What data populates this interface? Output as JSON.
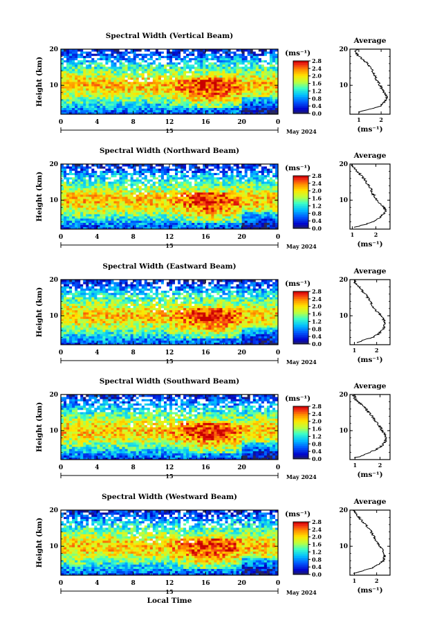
{
  "figure": {
    "date_label": "May 2024",
    "day_label": "15",
    "xlabel": "Local Time",
    "colorbar_unit": "(ms⁻¹)",
    "average_title": "Average"
  },
  "chart_data": [
    {
      "type": "heatmap",
      "title": "Spectral Width (Vertical Beam)",
      "xlabel": "",
      "ylabel": "Height (km)",
      "xlim": [
        0,
        24
      ],
      "ylim": [
        2,
        20
      ],
      "xticks": [
        "0",
        "4",
        "8",
        "12",
        "16",
        "20",
        "0"
      ],
      "yticks": [
        "10",
        "20"
      ],
      "colorbar": {
        "min": 0.0,
        "max": 2.8,
        "ticks": [
          "0.0",
          "0.4",
          "0.8",
          "1.2",
          "1.6",
          "2.0",
          "2.4",
          "2.8"
        ]
      },
      "average_profile": {
        "title": "Average",
        "xlabel": "(ms⁻¹)",
        "xticks": [
          "1",
          "2"
        ],
        "yticks": [
          "10",
          "20"
        ],
        "xlim": [
          0.6,
          2.4
        ],
        "height": [
          2.5,
          3,
          4,
          5,
          6,
          7,
          8,
          9,
          10,
          11,
          12,
          13,
          14,
          15,
          16,
          17,
          18,
          19,
          20
        ],
        "width": [
          1.0,
          1.2,
          1.9,
          2.1,
          2.2,
          2.25,
          2.15,
          2.05,
          1.95,
          1.85,
          1.75,
          1.7,
          1.6,
          1.5,
          1.4,
          1.2,
          1.0,
          0.85,
          0.9
        ]
      }
    },
    {
      "type": "heatmap",
      "title": "Spectral Width (Northward Beam)",
      "xlabel": "",
      "ylabel": "Height (km)",
      "xlim": [
        0,
        24
      ],
      "ylim": [
        2,
        20
      ],
      "xticks": [
        "0",
        "4",
        "8",
        "12",
        "16",
        "20",
        "0"
      ],
      "yticks": [
        "10",
        "20"
      ],
      "colorbar": {
        "min": 0.0,
        "max": 2.8,
        "ticks": [
          "0.0",
          "0.4",
          "0.8",
          "1.2",
          "1.6",
          "2.0",
          "2.4",
          "2.8"
        ]
      },
      "average_profile": {
        "title": "Average",
        "xlabel": "(ms⁻¹)",
        "xticks": [
          "1",
          "2"
        ],
        "yticks": [
          "10",
          "20"
        ],
        "xlim": [
          0.9,
          2.6
        ],
        "height": [
          2.5,
          3,
          4,
          5,
          6,
          7,
          8,
          9,
          10,
          11,
          12,
          13,
          14,
          15,
          16,
          17,
          18,
          19,
          20
        ],
        "width": [
          1.1,
          1.4,
          1.9,
          2.15,
          2.3,
          2.4,
          2.35,
          2.2,
          2.05,
          1.95,
          1.85,
          1.8,
          1.7,
          1.6,
          1.5,
          1.35,
          1.2,
          1.05,
          1.0
        ]
      }
    },
    {
      "type": "heatmap",
      "title": "Spectral Width (Eastward Beam)",
      "xlabel": "",
      "ylabel": "Height (km)",
      "xlim": [
        0,
        24
      ],
      "ylim": [
        2,
        20
      ],
      "xticks": [
        "0",
        "4",
        "8",
        "12",
        "16",
        "20",
        "0"
      ],
      "yticks": [
        "10",
        "20"
      ],
      "colorbar": {
        "min": 0.0,
        "max": 2.8,
        "ticks": [
          "0.0",
          "0.4",
          "0.8",
          "1.2",
          "1.6",
          "2.0",
          "2.4",
          "2.8"
        ]
      },
      "average_profile": {
        "title": "Average",
        "xlabel": "(ms⁻¹)",
        "xticks": [
          "1",
          "2"
        ],
        "yticks": [
          "10",
          "20"
        ],
        "xlim": [
          0.8,
          2.6
        ],
        "height": [
          2.5,
          3,
          4,
          5,
          6,
          7,
          8,
          9,
          10,
          11,
          12,
          13,
          14,
          15,
          16,
          17,
          18,
          19,
          20
        ],
        "width": [
          1.1,
          1.3,
          1.8,
          2.1,
          2.25,
          2.35,
          2.4,
          2.3,
          2.2,
          2.05,
          1.9,
          1.8,
          1.7,
          1.6,
          1.5,
          1.35,
          1.2,
          1.05,
          1.0
        ]
      }
    },
    {
      "type": "heatmap",
      "title": "Spectral Width (Southward Beam)",
      "xlabel": "",
      "ylabel": "Height (km)",
      "xlim": [
        0,
        24
      ],
      "ylim": [
        2,
        20
      ],
      "xticks": [
        "0",
        "4",
        "8",
        "12",
        "16",
        "20",
        "0"
      ],
      "yticks": [
        "10",
        "20"
      ],
      "colorbar": {
        "min": 0.0,
        "max": 2.8,
        "ticks": [
          "0.0",
          "0.4",
          "0.8",
          "1.2",
          "1.6",
          "2.0",
          "2.4",
          "2.8"
        ]
      },
      "average_profile": {
        "title": "Average",
        "xlabel": "(ms⁻¹)",
        "xticks": [
          "1",
          "2"
        ],
        "yticks": [
          "10",
          "20"
        ],
        "xlim": [
          0.8,
          2.4
        ],
        "height": [
          2.5,
          3,
          4,
          5,
          6,
          7,
          8,
          9,
          10,
          11,
          12,
          13,
          14,
          15,
          16,
          17,
          18,
          19,
          20
        ],
        "width": [
          1.0,
          1.3,
          1.6,
          1.9,
          2.1,
          2.2,
          2.25,
          2.2,
          2.1,
          2.0,
          1.9,
          1.8,
          1.7,
          1.55,
          1.45,
          1.3,
          1.1,
          1.0,
          0.95
        ]
      }
    },
    {
      "type": "heatmap",
      "title": "Spectral Width (Westward Beam)",
      "xlabel": "Local Time",
      "ylabel": "Height (km)",
      "xlim": [
        0,
        24
      ],
      "ylim": [
        2,
        20
      ],
      "xticks": [
        "0",
        "4",
        "8",
        "12",
        "16",
        "20",
        "0"
      ],
      "yticks": [
        "10",
        "20"
      ],
      "colorbar": {
        "min": 0.0,
        "max": 2.8,
        "ticks": [
          "0.0",
          "0.4",
          "0.8",
          "1.2",
          "1.6",
          "2.0",
          "2.4",
          "2.8"
        ]
      },
      "average_profile": {
        "title": "Average",
        "xlabel": "(ms⁻¹)",
        "xticks": [
          "1",
          "2"
        ],
        "yticks": [
          "10",
          "20"
        ],
        "xlim": [
          0.8,
          2.6
        ],
        "height": [
          2.5,
          3,
          4,
          5,
          6,
          7,
          8,
          9,
          10,
          11,
          12,
          13,
          14,
          15,
          16,
          17,
          18,
          19,
          20
        ],
        "width": [
          1.0,
          1.3,
          1.8,
          2.1,
          2.3,
          2.35,
          2.35,
          2.25,
          2.15,
          2.05,
          1.95,
          1.85,
          1.75,
          1.65,
          1.5,
          1.35,
          1.2,
          1.05,
          1.0
        ]
      }
    }
  ]
}
